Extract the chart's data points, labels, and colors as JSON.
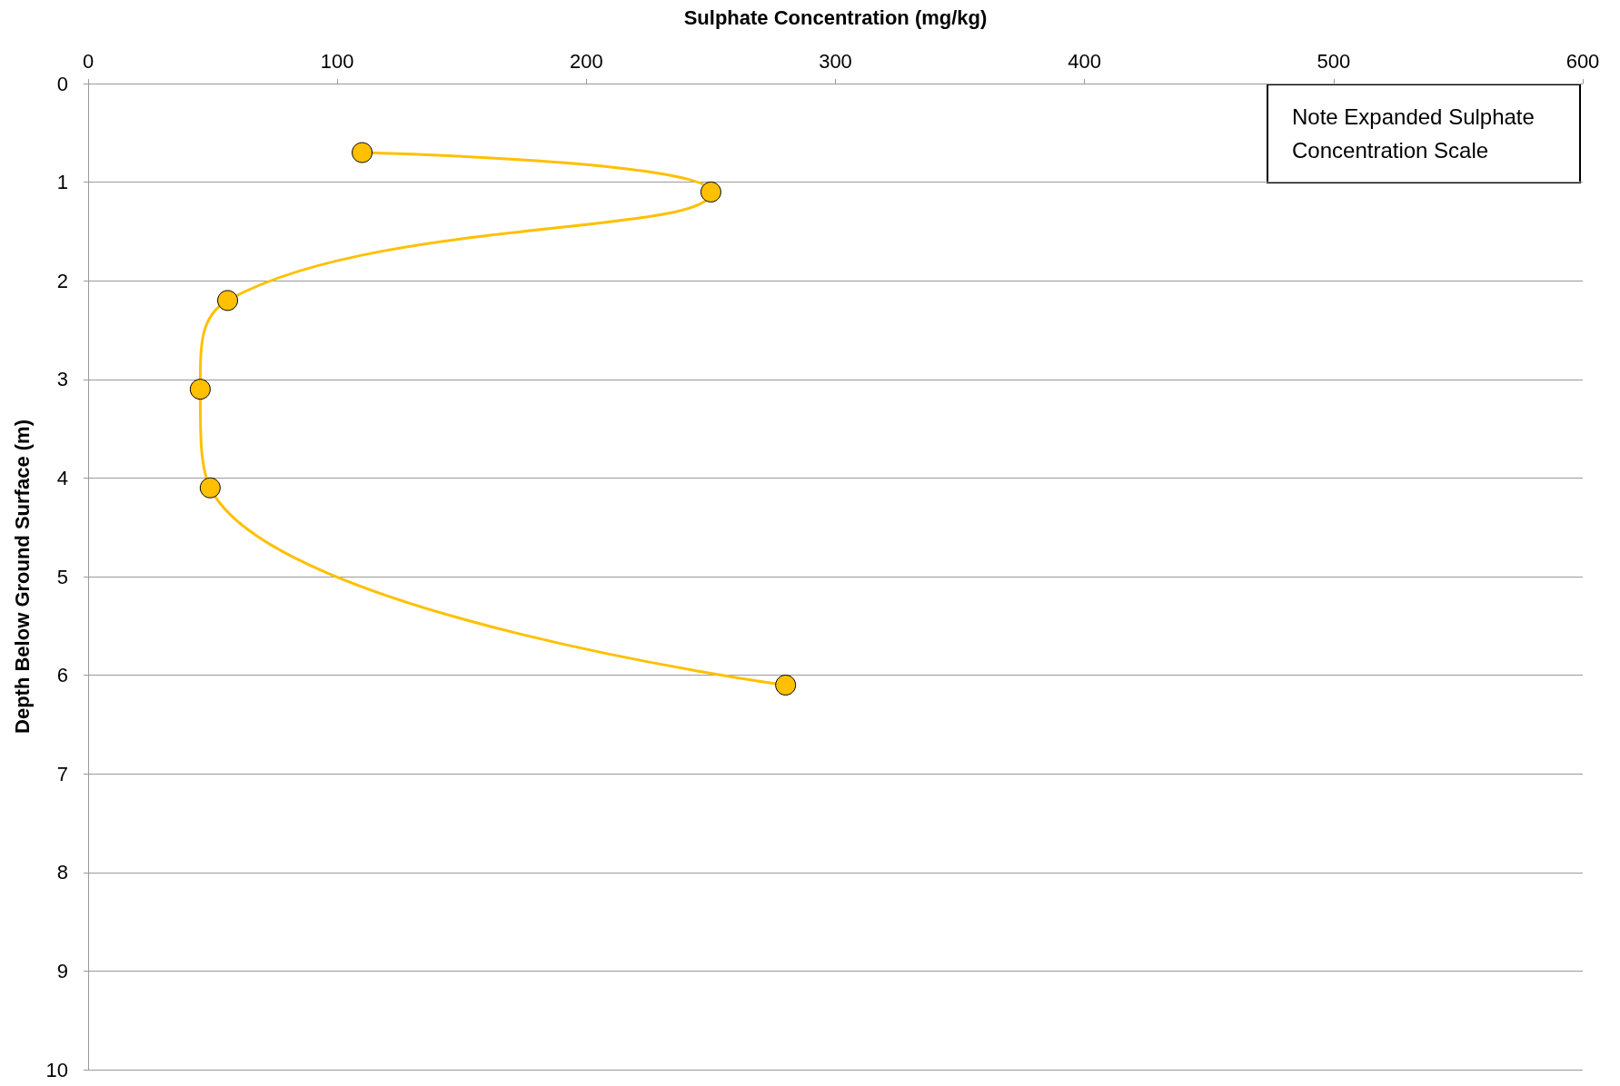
{
  "chart_data": {
    "type": "line",
    "xlabel": "Sulphate Concentration (mg/kg)",
    "ylabel": "Depth Below Ground Surface (m)",
    "annotations": [
      "Note Expanded Sulphate Concentration Scale"
    ],
    "x": [
      110,
      250,
      56,
      45,
      49,
      280
    ],
    "series": [
      {
        "color": "#ffc000",
        "values": [
          0.7,
          1.1,
          2.2,
          3.1,
          4.1,
          6.1
        ]
      }
    ],
    "xlim": [
      0,
      600
    ],
    "xticks": [
      0,
      100,
      200,
      300,
      400,
      500,
      600
    ],
    "ylim": [
      10,
      0
    ],
    "yticks": [
      0,
      1,
      2,
      3,
      4,
      5,
      6,
      7,
      8,
      9,
      10
    ],
    "grid": "y",
    "marker": "circle",
    "line_style": "solid"
  }
}
